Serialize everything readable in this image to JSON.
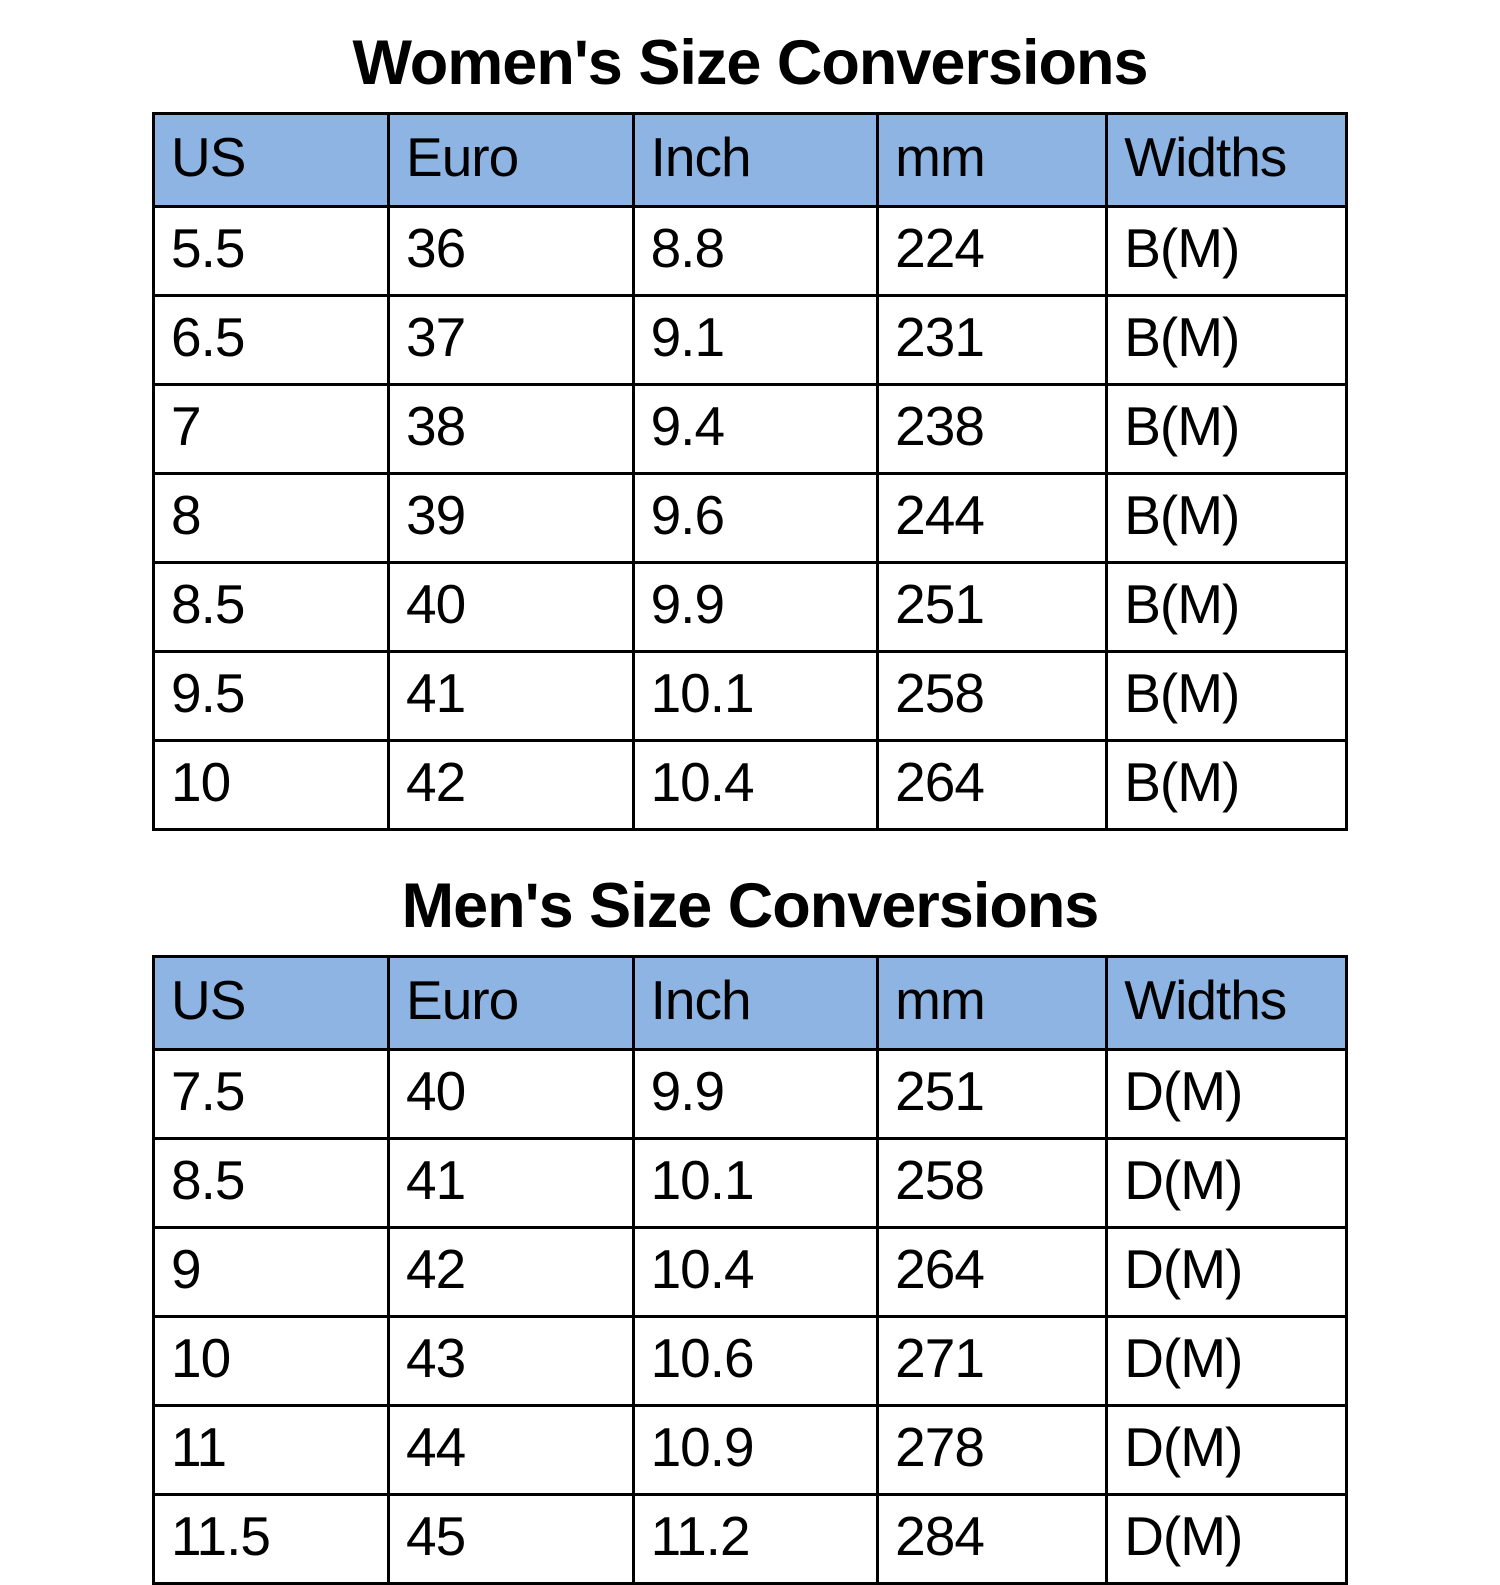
{
  "colors": {
    "header_background": "#8DB4E2",
    "grid_border": "#000000",
    "text": "#000000",
    "page_background": "#ffffff"
  },
  "tables": [
    {
      "title": "Women's Size Conversions",
      "columns": [
        "US",
        "Euro",
        "Inch",
        "mm",
        "Widths"
      ],
      "rows": [
        [
          "5.5",
          "36",
          "8.8",
          "224",
          "B(M)"
        ],
        [
          "6.5",
          "37",
          "9.1",
          "231",
          "B(M)"
        ],
        [
          "7",
          "38",
          "9.4",
          "238",
          "B(M)"
        ],
        [
          "8",
          "39",
          "9.6",
          "244",
          "B(M)"
        ],
        [
          "8.5",
          "40",
          "9.9",
          "251",
          "B(M)"
        ],
        [
          "9.5",
          "41",
          "10.1",
          "258",
          "B(M)"
        ],
        [
          "10",
          "42",
          "10.4",
          "264",
          "B(M)"
        ]
      ]
    },
    {
      "title": "Men's Size Conversions",
      "columns": [
        "US",
        "Euro",
        "Inch",
        "mm",
        "Widths"
      ],
      "rows": [
        [
          "7.5",
          "40",
          "9.9",
          "251",
          "D(M)"
        ],
        [
          "8.5",
          "41",
          "10.1",
          "258",
          "D(M)"
        ],
        [
          "9",
          "42",
          "10.4",
          "264",
          "D(M)"
        ],
        [
          "10",
          "43",
          "10.6",
          "271",
          "D(M)"
        ],
        [
          "11",
          "44",
          "10.9",
          "278",
          "D(M)"
        ],
        [
          "11.5",
          "45",
          "11.2",
          "284",
          "D(M)"
        ]
      ]
    }
  ]
}
